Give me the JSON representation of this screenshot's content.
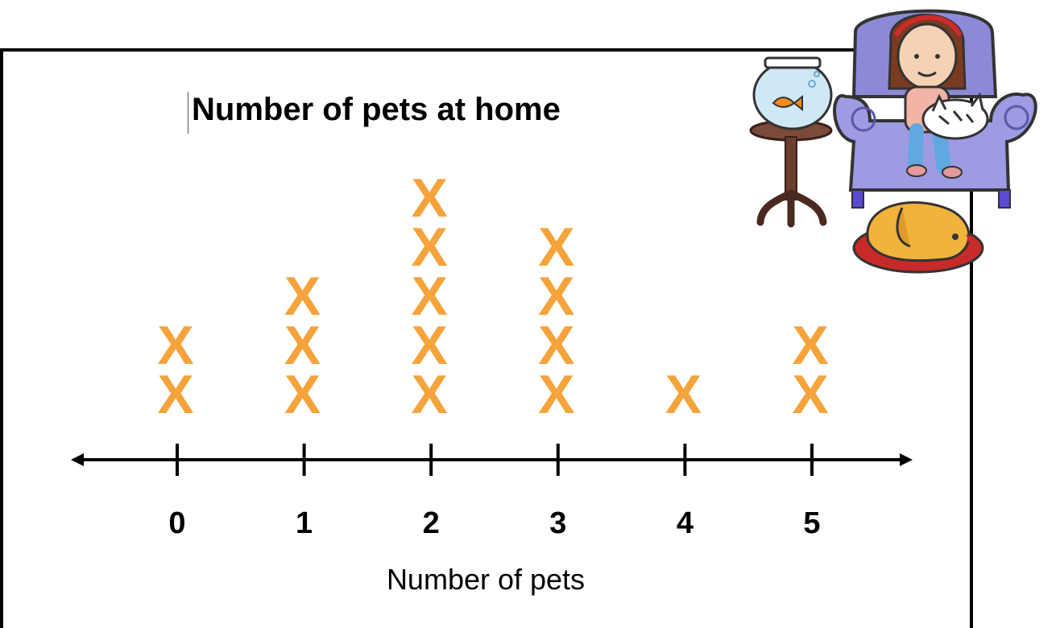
{
  "chart_data": {
    "type": "scatter",
    "title": "Number of pets at home",
    "xlabel": "Number of pets",
    "categories": [
      "0",
      "1",
      "2",
      "3",
      "4",
      "5"
    ],
    "values": [
      2,
      3,
      5,
      4,
      1,
      2
    ],
    "marker": "X",
    "marker_color": "#F5A33A",
    "grid": false,
    "legend": "none"
  },
  "illustration": {
    "description_icon": "girl-in-armchair-with-cat-fishbowl-and-dog-icon"
  }
}
